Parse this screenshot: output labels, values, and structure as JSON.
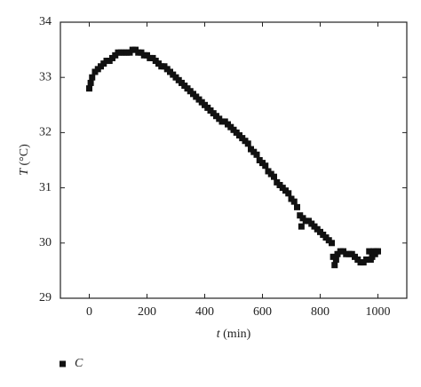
{
  "chart_data": {
    "type": "scatter",
    "xlabel": {
      "symbol": "t",
      "unit": "(min)"
    },
    "ylabel": {
      "symbol": "T",
      "unit": "(°C)"
    },
    "x": [
      0,
      5,
      10,
      20,
      30,
      40,
      50,
      60,
      70,
      80,
      90,
      100,
      110,
      120,
      130,
      140,
      150,
      160,
      170,
      180,
      190,
      200,
      210,
      220,
      230,
      240,
      250,
      260,
      270,
      280,
      290,
      300,
      310,
      320,
      330,
      340,
      350,
      360,
      370,
      380,
      390,
      400,
      410,
      420,
      430,
      440,
      450,
      460,
      470,
      480,
      490,
      500,
      510,
      520,
      530,
      540,
      550,
      560,
      570,
      580,
      590,
      600,
      610,
      620,
      630,
      640,
      650,
      660,
      670,
      680,
      690,
      700,
      710,
      720,
      730,
      735,
      740,
      750,
      760,
      770,
      780,
      790,
      800,
      810,
      820,
      830,
      840,
      845,
      850,
      855,
      860,
      870,
      880,
      890,
      900,
      910,
      920,
      930,
      940,
      950,
      960,
      970,
      975,
      980,
      985,
      990,
      995,
      1000
    ],
    "series": [
      {
        "name": "C",
        "color": "#111111",
        "values": [
          32.8,
          32.9,
          33.0,
          33.1,
          33.15,
          33.2,
          33.25,
          33.3,
          33.3,
          33.35,
          33.4,
          33.45,
          33.45,
          33.45,
          33.45,
          33.45,
          33.5,
          33.5,
          33.45,
          33.45,
          33.4,
          33.4,
          33.35,
          33.35,
          33.3,
          33.25,
          33.2,
          33.2,
          33.15,
          33.1,
          33.05,
          33.0,
          32.95,
          32.9,
          32.85,
          32.8,
          32.75,
          32.7,
          32.65,
          32.6,
          32.55,
          32.5,
          32.45,
          32.4,
          32.35,
          32.3,
          32.25,
          32.2,
          32.2,
          32.15,
          32.1,
          32.05,
          32.0,
          31.95,
          31.9,
          31.85,
          31.8,
          31.7,
          31.65,
          31.6,
          31.5,
          31.45,
          31.4,
          31.3,
          31.25,
          31.2,
          31.1,
          31.05,
          31.0,
          30.95,
          30.9,
          30.8,
          30.75,
          30.65,
          30.5,
          30.3,
          30.45,
          30.4,
          30.4,
          30.35,
          30.3,
          30.25,
          30.2,
          30.15,
          30.1,
          30.05,
          30.0,
          29.75,
          29.6,
          29.7,
          29.8,
          29.85,
          29.85,
          29.8,
          29.8,
          29.8,
          29.75,
          29.7,
          29.65,
          29.65,
          29.7,
          29.85,
          29.7,
          29.75,
          29.85,
          29.8,
          29.85,
          29.85
        ]
      }
    ],
    "xlim": [
      -100,
      1100
    ],
    "xticks": [
      0,
      200,
      400,
      600,
      800,
      1000
    ],
    "ylim": [
      29,
      34
    ],
    "yticks": [
      29,
      30,
      31,
      32,
      33,
      34
    ],
    "grid": false,
    "legend": "bottom-left"
  }
}
